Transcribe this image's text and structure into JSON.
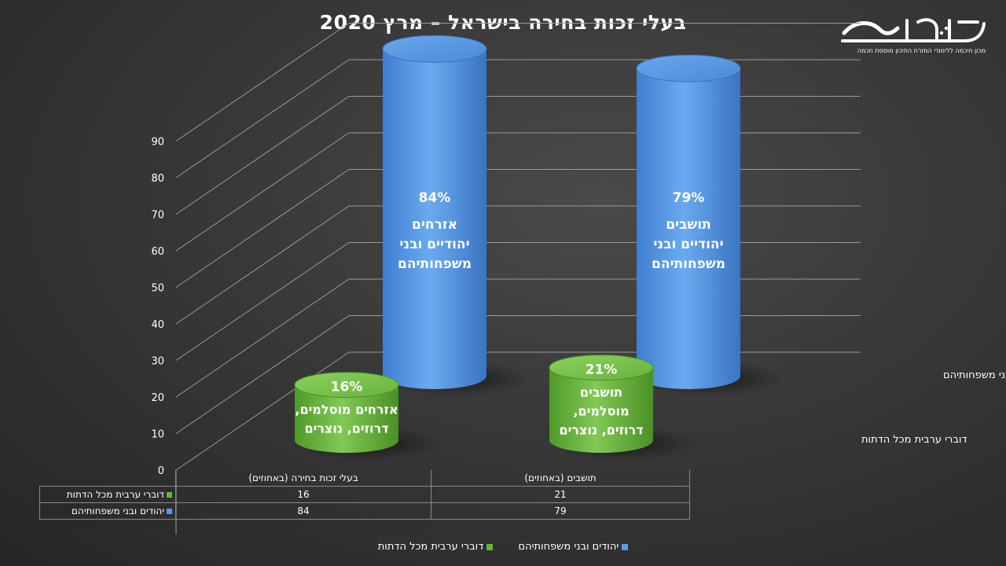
{
  "title": "בעלי זכות בחירה בישראל – מרץ 2020",
  "logo": {
    "name": "חכמה",
    "subtitle": "מכון חיכמה ללימודי המזרח התיכון מוססת חכמה"
  },
  "chart_data": {
    "type": "bar",
    "categories": [
      "בעלי זכות בחירה (באחוזים)",
      "תושבים (באחוזים)"
    ],
    "series": [
      {
        "name": "דוברי ערבית מכל הדתות",
        "values": [
          16,
          21
        ],
        "color": "#6ab43a",
        "labels": [
          {
            "pct": "16%",
            "lines": [
              "אזרחים מוסלמים,",
              "דרוזים, נוצרים"
            ]
          },
          {
            "pct": "21%",
            "lines": [
              "תושבים",
              "מוסלמים,",
              "דרוזים, נוצרים"
            ]
          }
        ]
      },
      {
        "name": "יהודים ובני משפחותיהם",
        "values": [
          84,
          79
        ],
        "color": "#5b9be6",
        "labels": [
          {
            "pct": "84%",
            "lines": [
              "אזרחים",
              "יהודיים ובני",
              "משפחותיהם"
            ]
          },
          {
            "pct": "79%",
            "lines": [
              "תושבים",
              "יהודיים ובני",
              "משפחותיהם"
            ]
          }
        ]
      }
    ],
    "yticks": [
      0,
      10,
      20,
      30,
      40,
      50,
      60,
      70,
      80,
      90
    ],
    "ylim": [
      0,
      90
    ],
    "grid": true,
    "legend": "bottom",
    "data_table": true
  }
}
